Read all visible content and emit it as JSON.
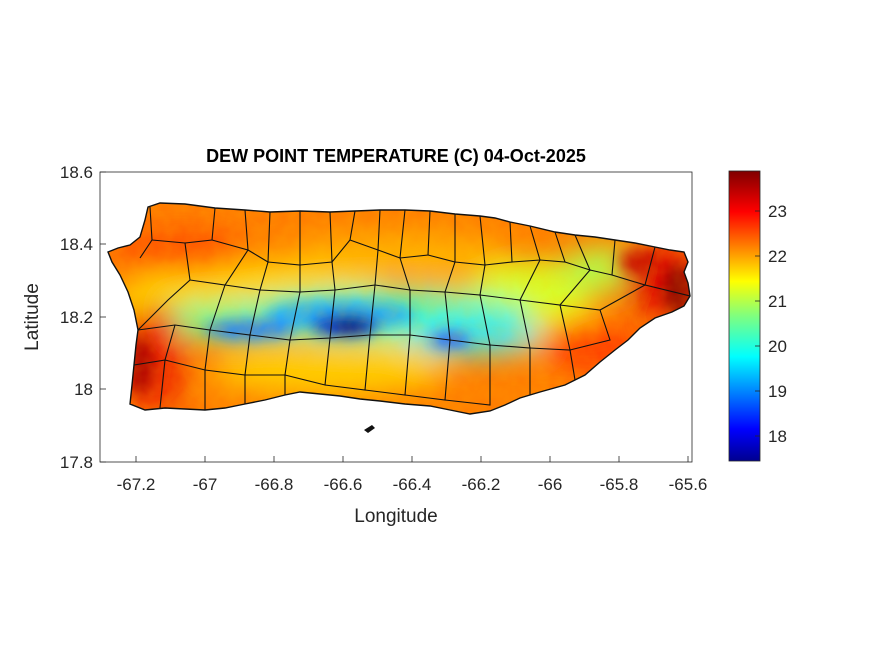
{
  "title": "DEW POINT TEMPERATURE (C) 04-Oct-2025",
  "xlabel": "Longitude",
  "ylabel": "Latitude",
  "x_ticks": [
    "-67.2",
    "-67",
    "-66.8",
    "-66.6",
    "-66.4",
    "-66.2",
    "-66",
    "-65.8",
    "-65.6"
  ],
  "y_ticks": [
    "18.6",
    "18.4",
    "18.2",
    "18",
    "17.8"
  ],
  "colorbar": {
    "colormap": "jet",
    "min": 17.4,
    "max": 23.9,
    "ticks": [
      "23",
      "22",
      "21",
      "20",
      "19",
      "18"
    ]
  },
  "map": {
    "region": "Puerto Rico",
    "xlim": [
      -67.3,
      -65.58
    ],
    "ylim": [
      17.8,
      18.6
    ],
    "field": "dew point temperature (C)",
    "pattern": "warmest (23+) along the west and east coasts, coolest (17.5-20) along the central mountain range",
    "boundaries": "municipality outlines in black"
  }
}
